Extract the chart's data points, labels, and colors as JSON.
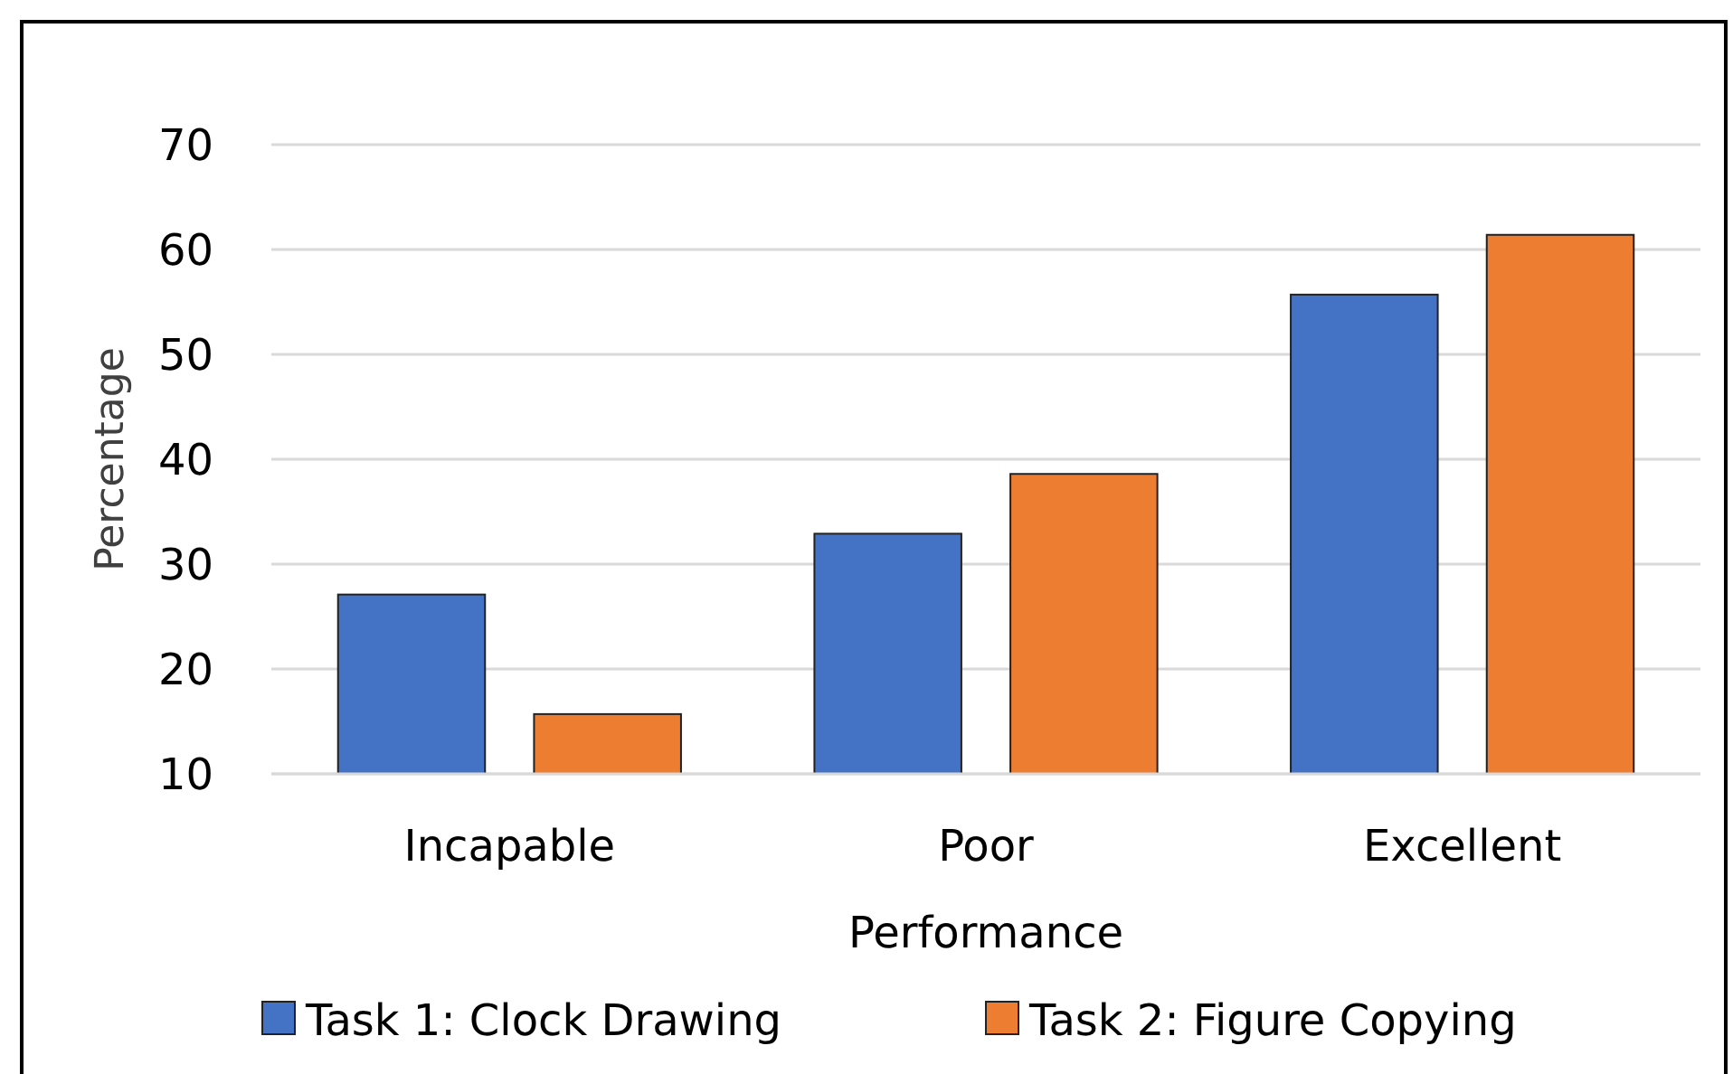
{
  "chart_data": {
    "type": "bar",
    "xlabel": "Performance",
    "ylabel": "Percentage",
    "categories": [
      "Incapable",
      "Poor",
      "Excellent"
    ],
    "series": [
      {
        "name": "Task 1: Clock Drawing",
        "color": "#4472c4",
        "values": [
          27.1,
          32.9,
          55.7
        ]
      },
      {
        "name": "Task 2: Figure Copying",
        "color": "#ed7d31",
        "values": [
          15.7,
          38.6,
          61.4
        ]
      }
    ],
    "ylim": [
      10,
      70
    ],
    "yticks": [
      10,
      20,
      30,
      40,
      50,
      60,
      70
    ],
    "grid": "y",
    "legend": "bottom"
  }
}
